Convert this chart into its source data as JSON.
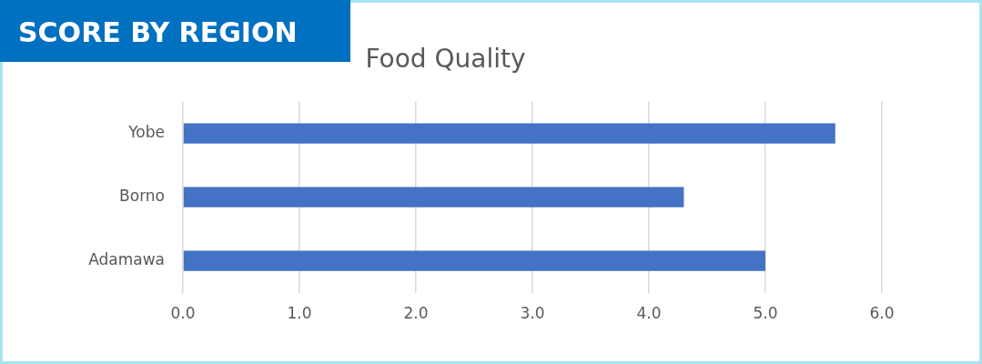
{
  "chart_data": {
    "type": "bar",
    "title": "Food Quality",
    "subtitle": "SCORE BY REGION",
    "orientation": "horizontal",
    "categories": [
      "Yobe",
      "Borno",
      "Adamawa"
    ],
    "values": [
      5.6,
      4.3,
      5.0
    ],
    "color": "#4472c4",
    "xlim": [
      0,
      6
    ],
    "xticks": [
      {
        "value": 0,
        "label": "0.0"
      },
      {
        "value": 1,
        "label": "1.0"
      },
      {
        "value": 2,
        "label": "2.0"
      },
      {
        "value": 3,
        "label": "3.0"
      },
      {
        "value": 4,
        "label": "4.0"
      },
      {
        "value": 5,
        "label": "5.0"
      },
      {
        "value": 6,
        "label": "6.0"
      }
    ],
    "grid": "x",
    "legend": false
  }
}
